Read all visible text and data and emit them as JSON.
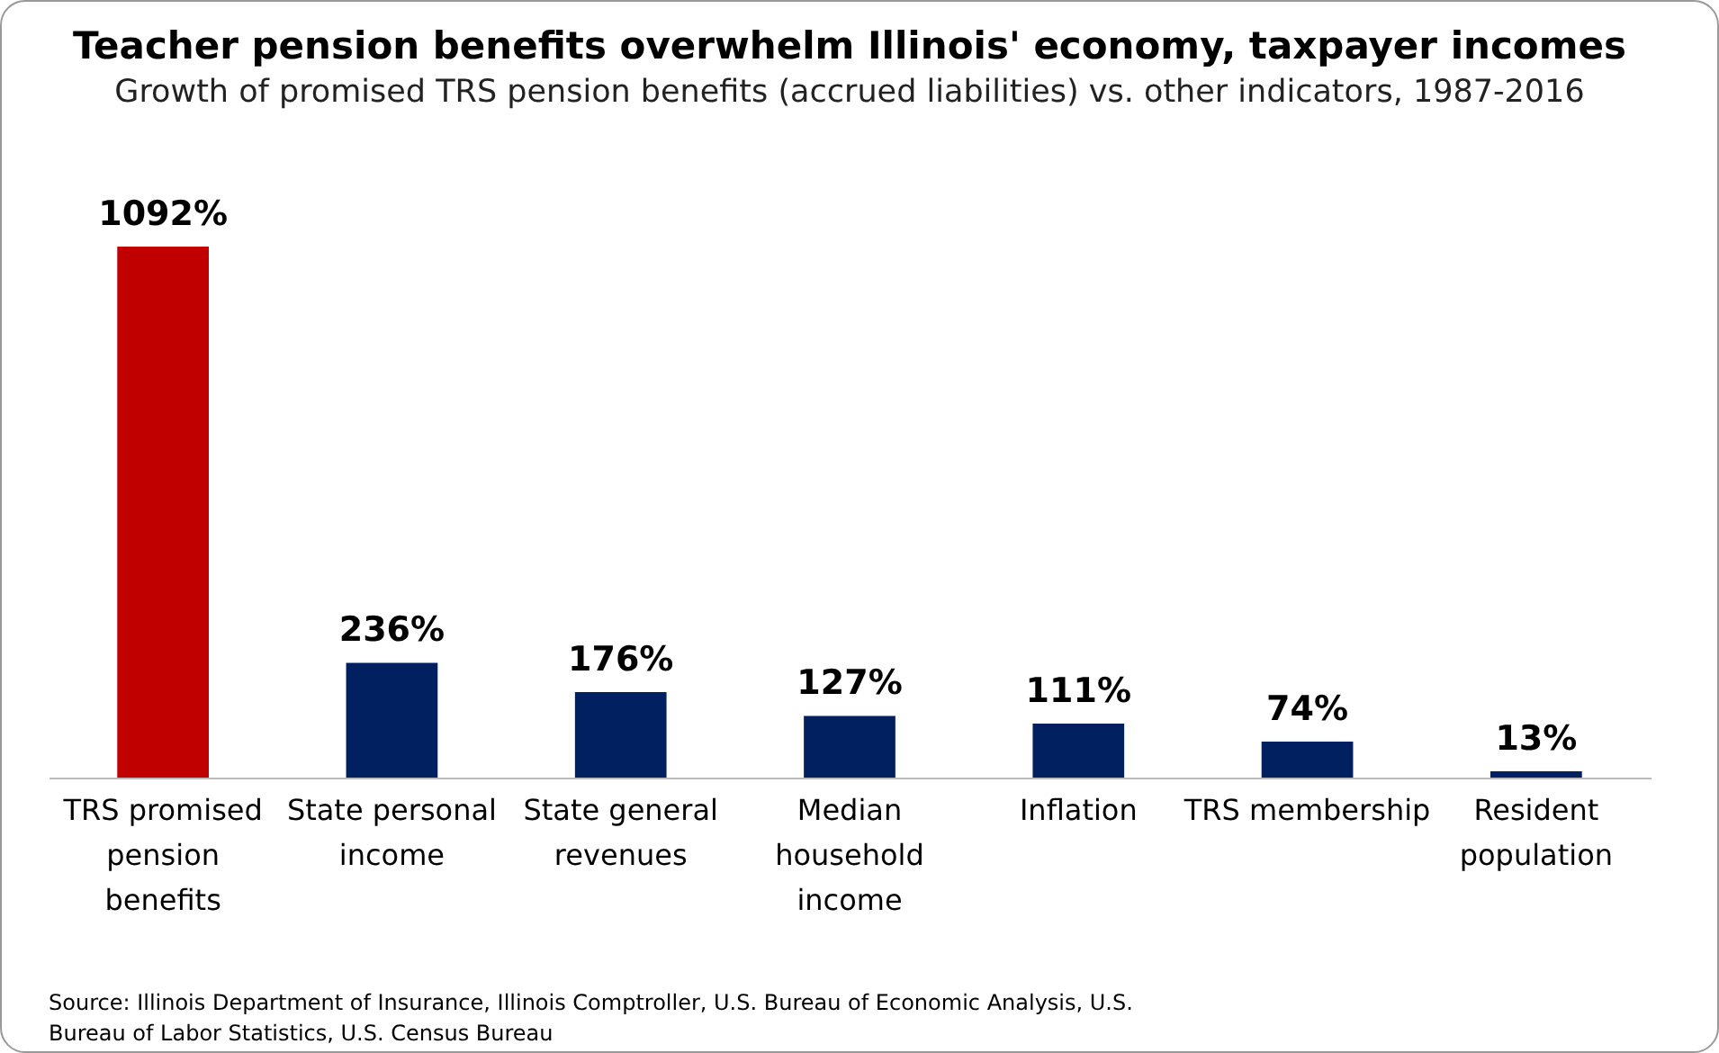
{
  "chart_data": {
    "type": "bar",
    "title": "Teacher pension benefits overwhelm Illinois' economy, taxpayer incomes",
    "subtitle": "Growth of promised TRS pension benefits (accrued liabilities) vs. other indicators, 1987-2016",
    "categories": [
      "TRS promised pension benefits",
      "State personal income",
      "State general revenues",
      "Median household income",
      "Inflation",
      "TRS membership",
      "Resident population"
    ],
    "values": [
      1092,
      236,
      176,
      127,
      111,
      74,
      13
    ],
    "value_labels": [
      "1092%",
      "236%",
      "176%",
      "127%",
      "111%",
      "74%",
      "13%"
    ],
    "colors": [
      "#c00000",
      "#002060",
      "#002060",
      "#002060",
      "#002060",
      "#002060",
      "#002060"
    ],
    "annotations": [
      "Source: Illinois Department of Insurance, Illinois Comptroller, U.S. Bureau of Economic Analysis, U.S. Bureau of Labor Statistics, U.S. Census Bureau"
    ]
  }
}
